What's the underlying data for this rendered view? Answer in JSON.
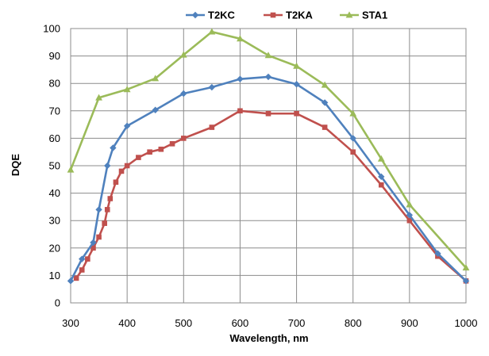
{
  "chart_data": {
    "type": "line",
    "title": "",
    "xlabel": "Wavelength, nm",
    "ylabel": "DQE",
    "xlim": [
      300,
      1000
    ],
    "ylim": [
      0,
      100
    ],
    "xticks": [
      "300",
      "400",
      "500",
      "600",
      "700",
      "800",
      "900",
      "1000"
    ],
    "yticks": [
      "0",
      "10",
      "20",
      "30",
      "40",
      "50",
      "60",
      "70",
      "80",
      "90",
      "100"
    ],
    "grid": true,
    "legend_position": "top",
    "series": [
      {
        "name": "T2KC",
        "color": "#4f81bd",
        "marker": "diamond",
        "points": [
          [
            300,
            8
          ],
          [
            320,
            16
          ],
          [
            340,
            22
          ],
          [
            350,
            34
          ],
          [
            365,
            50
          ],
          [
            375,
            56.5
          ],
          [
            400,
            64.5
          ],
          [
            450,
            70.3
          ],
          [
            500,
            76.3
          ],
          [
            550,
            78.6
          ],
          [
            600,
            81.6
          ],
          [
            650,
            82.4
          ],
          [
            700,
            79.7
          ],
          [
            750,
            73
          ],
          [
            800,
            60
          ],
          [
            850,
            46
          ],
          [
            900,
            32
          ],
          [
            950,
            18
          ],
          [
            1000,
            8
          ]
        ]
      },
      {
        "name": "T2KA",
        "color": "#c0504d",
        "marker": "square",
        "points": [
          [
            310,
            9
          ],
          [
            320,
            12
          ],
          [
            330,
            16
          ],
          [
            340,
            20
          ],
          [
            350,
            24
          ],
          [
            360,
            29
          ],
          [
            365,
            34
          ],
          [
            370,
            38
          ],
          [
            380,
            44
          ],
          [
            390,
            48
          ],
          [
            400,
            50
          ],
          [
            420,
            53
          ],
          [
            440,
            55
          ],
          [
            460,
            56
          ],
          [
            480,
            58
          ],
          [
            500,
            60
          ],
          [
            550,
            64
          ],
          [
            600,
            70
          ],
          [
            650,
            69
          ],
          [
            700,
            69
          ],
          [
            750,
            64
          ],
          [
            800,
            55
          ],
          [
            850,
            43
          ],
          [
            900,
            30
          ],
          [
            950,
            17
          ],
          [
            1000,
            8
          ]
        ]
      },
      {
        "name": "STA1",
        "color": "#9bbb59",
        "marker": "triangle",
        "points": [
          [
            300,
            48.5
          ],
          [
            350,
            74.8
          ],
          [
            400,
            77.8
          ],
          [
            450,
            81.8
          ],
          [
            500,
            90.4
          ],
          [
            550,
            98.8
          ],
          [
            600,
            96.3
          ],
          [
            650,
            90.2
          ],
          [
            700,
            86.3
          ],
          [
            750,
            79.4
          ],
          [
            800,
            69
          ],
          [
            850,
            52.5
          ],
          [
            900,
            35.8
          ],
          [
            1000,
            12.8
          ]
        ]
      }
    ]
  }
}
